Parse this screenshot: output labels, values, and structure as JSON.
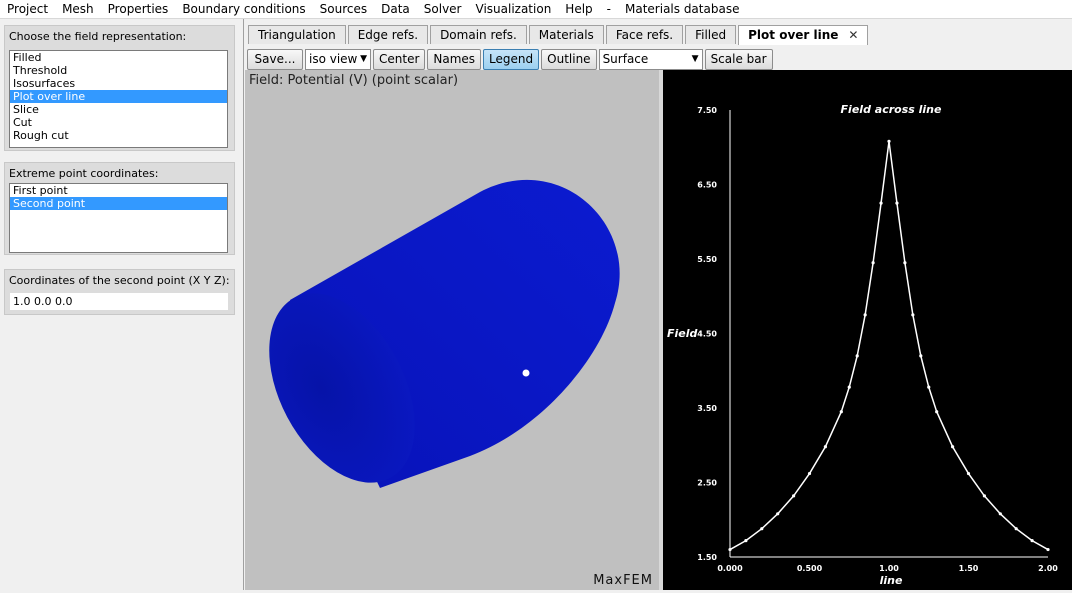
{
  "menu": [
    "Project",
    "Mesh",
    "Properties",
    "Boundary conditions",
    "Sources",
    "Data",
    "Solver",
    "Visualization",
    "Help",
    "-",
    "Materials database"
  ],
  "left": {
    "representation": {
      "title": "Choose the field representation:",
      "items": [
        "Filled",
        "Threshold",
        "Isosurfaces",
        "Plot over line",
        "Slice",
        "Cut",
        "Rough cut"
      ],
      "selected": "Plot over line"
    },
    "extreme": {
      "title": "Extreme point coordinates:",
      "items": [
        "First point",
        "Second point"
      ],
      "selected": "Second point"
    },
    "coords": {
      "title": "Coordinates of the second point (X Y Z):",
      "value": "1.0 0.0 0.0"
    }
  },
  "tabs": [
    "Triangulation",
    "Edge refs.",
    "Domain refs.",
    "Materials",
    "Face refs.",
    "Filled",
    "Plot over line"
  ],
  "active_tab": "Plot over line",
  "toolbar": {
    "save": "Save...",
    "view": "iso view",
    "center": "Center",
    "names": "Names",
    "legend": "Legend",
    "outline": "Outline",
    "surface": "Surface",
    "scalebar": "Scale bar"
  },
  "viewport": {
    "field_label": "Field: Potential (V) (point scalar)",
    "watermark": "MaxFEM"
  },
  "colors": {
    "cylinder": "#0a14c8",
    "plot_bg": "#000000",
    "plot_fg": "#ffffff",
    "selection": "#3399ff"
  },
  "chart_data": {
    "type": "line",
    "title": "Field across line",
    "xlabel": "line",
    "ylabel": "Field",
    "xlim": [
      0,
      2
    ],
    "ylim": [
      1.5,
      7.5
    ],
    "xticks": [
      "0.000",
      "0.500",
      "1.00",
      "1.50",
      "2.00"
    ],
    "yticks": [
      "1.50",
      "2.50",
      "3.50",
      "4.50",
      "5.50",
      "6.50",
      "7.50"
    ],
    "series": [
      {
        "x": [
          0.0,
          0.1,
          0.2,
          0.3,
          0.4,
          0.5,
          0.6,
          0.7,
          0.75,
          0.8,
          0.85,
          0.9,
          0.95,
          1.0,
          1.05,
          1.1,
          1.15,
          1.2,
          1.25,
          1.3,
          1.4,
          1.5,
          1.6,
          1.7,
          1.8,
          1.9,
          2.0
        ],
        "y": [
          1.6,
          1.72,
          1.88,
          2.08,
          2.32,
          2.62,
          2.98,
          3.45,
          3.78,
          4.2,
          4.75,
          5.45,
          6.25,
          7.08,
          6.25,
          5.45,
          4.75,
          4.2,
          3.78,
          3.45,
          2.98,
          2.62,
          2.32,
          2.08,
          1.88,
          1.72,
          1.6
        ]
      }
    ]
  }
}
